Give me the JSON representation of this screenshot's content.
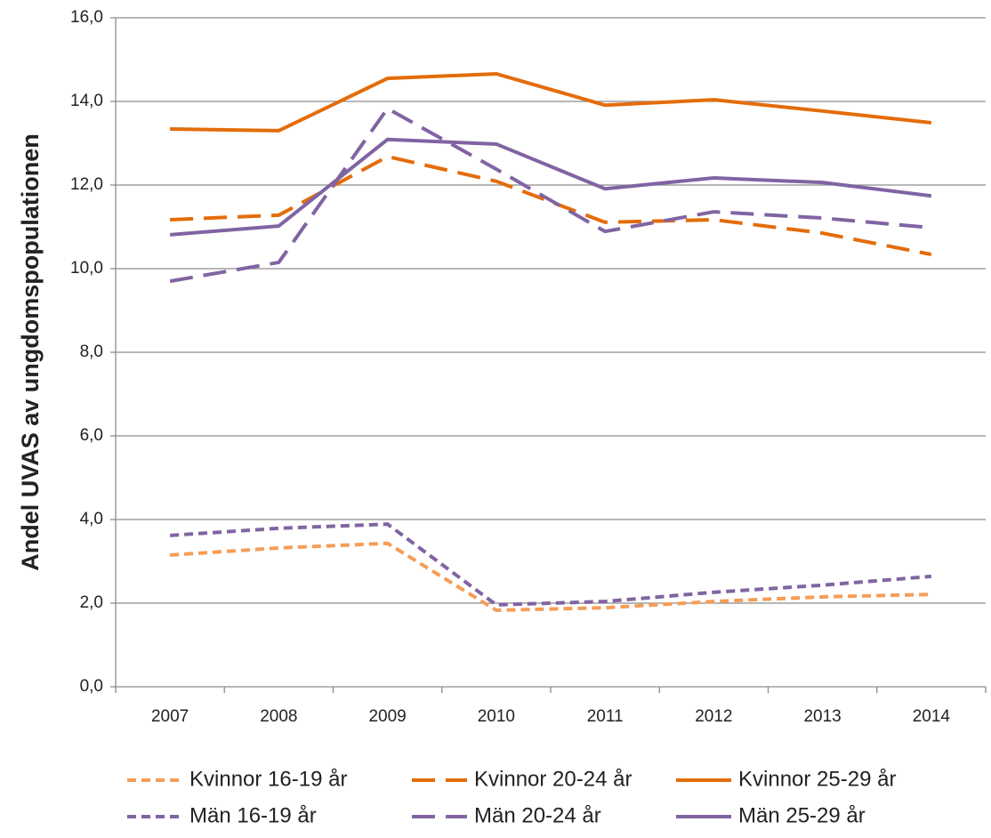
{
  "chart_data": {
    "type": "line",
    "y_label": "Andel UVAS av ungdomspopulationen",
    "categories": [
      "2007",
      "2008",
      "2009",
      "2010",
      "2011",
      "2012",
      "2013",
      "2014"
    ],
    "series": [
      {
        "name": "Kvinnor 16-19 år",
        "color": "#f59d56",
        "dash": "short",
        "values": [
          3.15,
          3.32,
          3.43,
          1.83,
          1.89,
          2.04,
          2.15,
          2.21
        ]
      },
      {
        "name": "Kvinnor 20-24 år",
        "color": "#e46c0a",
        "dash": "long",
        "values": [
          11.17,
          11.28,
          12.68,
          12.09,
          11.11,
          11.17,
          10.85,
          10.34
        ]
      },
      {
        "name": "Kvinnor 25-29 år",
        "color": "#e46c0a",
        "dash": "solid",
        "values": [
          13.34,
          13.3,
          14.55,
          14.66,
          13.91,
          14.04,
          13.77,
          13.49
        ]
      },
      {
        "name": "Män 16-19 år",
        "color": "#8064a2",
        "dash": "short",
        "values": [
          3.62,
          3.79,
          3.89,
          1.96,
          2.04,
          2.26,
          2.43,
          2.64
        ]
      },
      {
        "name": "Män 20-24 år",
        "color": "#8064a2",
        "dash": "long",
        "values": [
          9.7,
          10.15,
          13.83,
          12.38,
          10.89,
          11.36,
          11.21,
          10.98
        ]
      },
      {
        "name": "Män 25-29 år",
        "color": "#8064a2",
        "dash": "solid",
        "values": [
          10.81,
          11.02,
          13.09,
          12.98,
          11.91,
          12.17,
          12.06,
          11.74
        ]
      }
    ],
    "ylim": [
      0,
      16
    ],
    "yticks": [
      {
        "value": 0,
        "label": "0,0"
      },
      {
        "value": 2,
        "label": "2,0"
      },
      {
        "value": 4,
        "label": "4,0"
      },
      {
        "value": 6,
        "label": "6,0"
      },
      {
        "value": 8,
        "label": "8,0"
      },
      {
        "value": 10,
        "label": "10,0"
      },
      {
        "value": 12,
        "label": "12,0"
      },
      {
        "value": 14,
        "label": "14,0"
      },
      {
        "value": 16,
        "label": "16,0"
      }
    ],
    "grid": true
  }
}
